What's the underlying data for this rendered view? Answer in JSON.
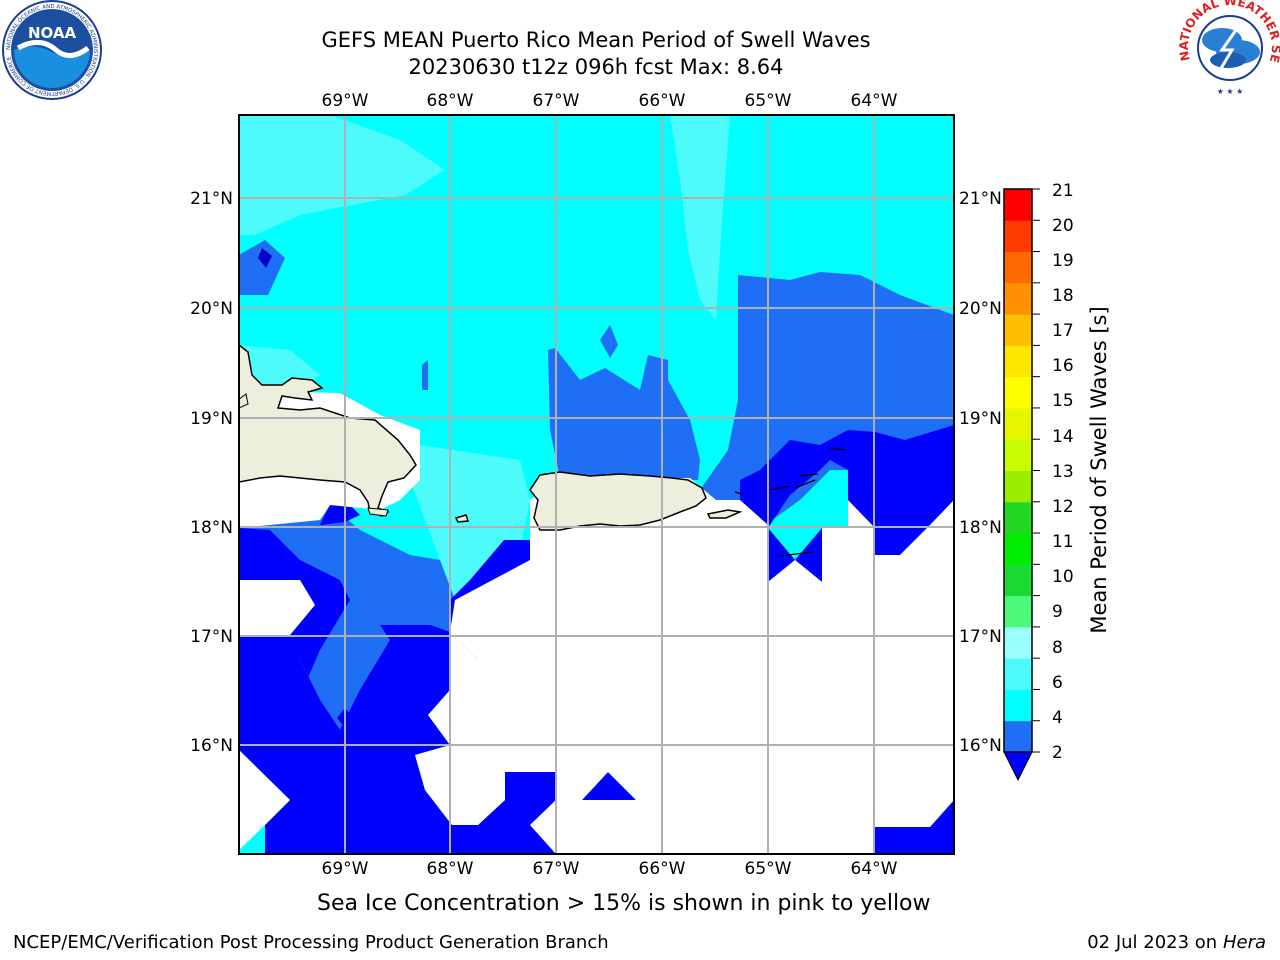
{
  "header": {
    "title_line1": "GEFS MEAN Puerto Rico Mean Period of Swell Waves",
    "title_line2": "20230630 t12z 096h fcst   Max: 8.64"
  },
  "logos": {
    "noaa_text": "NOAA",
    "noaa_ring_text": "NATIONAL OCEANIC AND ATMOSPHERIC ADMINISTRATION · U.S. DEPARTMENT OF COMMERCE",
    "nws_ring_text": "NATIONAL WEATHER SERVICE"
  },
  "map": {
    "lon_labels": [
      "69°W",
      "68°W",
      "67°W",
      "66°W",
      "65°W",
      "64°W"
    ],
    "lat_labels": [
      "21°N",
      "20°N",
      "19°N",
      "18°N",
      "17°N",
      "16°N"
    ],
    "lon_range": [
      -70.0,
      -63.25
    ],
    "lat_range": [
      15.0,
      21.75
    ],
    "colors": {
      "land": "#eeeedd",
      "ocean_lt2": "#ffffff",
      "c2_4": "#1e6ff5",
      "c4_6": "#00ffff",
      "c6_8": "#4dfbfb",
      "below_2": "#0000ff",
      "grid": "#b0b0b0"
    }
  },
  "colorbar": {
    "label": "Mean Period of Swell Waves [s]",
    "ticks": [
      "21",
      "20",
      "19",
      "18",
      "17",
      "16",
      "15",
      "14",
      "13",
      "12",
      "11",
      "10",
      "9",
      "8",
      "6",
      "4",
      "2"
    ],
    "colors": [
      "#0000ff",
      "#1e6ff5",
      "#00ffff",
      "#4dfbfb",
      "#99fefc",
      "#4cf97a",
      "#1bdb32",
      "#00ec00",
      "#23d824",
      "#99ee00",
      "#c8fc00",
      "#e6f600",
      "#fefe00",
      "#ffe600",
      "#ffbe00",
      "#ff9100",
      "#ff6a00",
      "#ff3c00",
      "#ff0000"
    ]
  },
  "footer": {
    "subtitle": "Sea Ice Concentration > 15% is shown in pink to yellow",
    "left": "NCEP/EMC/Verification Post Processing Product Generation Branch",
    "date": "02 Jul 2023 on ",
    "host": "Hera"
  }
}
